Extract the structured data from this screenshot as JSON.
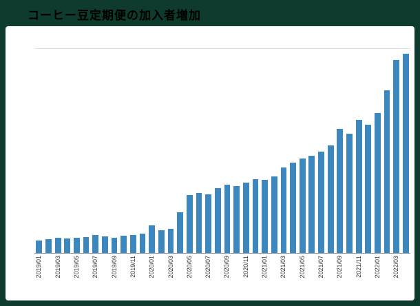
{
  "title": "コーヒー豆定期便の加入者増加",
  "colors": {
    "background": "#0e3b2e",
    "panel": "#ffffff",
    "bar": "#3c87be",
    "axis_line": "#8a8a8a",
    "gridline": "#e0e0e0",
    "tick_text": "#333333",
    "title_text": "#000000"
  },
  "chart_data": {
    "type": "bar",
    "title": "コーヒー豆定期便の加入者増加",
    "xlabel": "",
    "ylabel": "",
    "ylim": [
      0,
      300
    ],
    "grid": "single top gridline, x baseline",
    "legend_position": "none",
    "x_tick_every": 2,
    "x_tick_rotation": 90,
    "categories": [
      "2019/01",
      "2019/02",
      "2019/03",
      "2019/04",
      "2019/05",
      "2019/06",
      "2019/07",
      "2019/08",
      "2019/09",
      "2019/10",
      "2019/11",
      "2019/12",
      "2020/01",
      "2020/02",
      "2020/03",
      "2020/04",
      "2020/05",
      "2020/06",
      "2020/07",
      "2020/08",
      "2020/09",
      "2020/10",
      "2020/11",
      "2020/12",
      "2021/01",
      "2021/02",
      "2021/03",
      "2021/04",
      "2021/05",
      "2021/06",
      "2021/07",
      "2021/08",
      "2021/09",
      "2021/10",
      "2021/11",
      "2021/12",
      "2022/01",
      "2022/02",
      "2022/03",
      "2022/04"
    ],
    "values": [
      18,
      20,
      22,
      21,
      22,
      23,
      26,
      24,
      22,
      25,
      26,
      28,
      40,
      33,
      35,
      60,
      85,
      88,
      86,
      95,
      100,
      98,
      103,
      108,
      107,
      112,
      125,
      132,
      138,
      142,
      148,
      158,
      182,
      175,
      195,
      188,
      205,
      238,
      283,
      292
    ],
    "visible_x_tick_labels": [
      "2019/01",
      "2019/03",
      "2019/05",
      "2019/07",
      "2019/09",
      "2019/11",
      "2020/01",
      "2020/03",
      "2020/05",
      "2020/07",
      "2020/09",
      "2020/11",
      "2021/01",
      "2021/03",
      "2021/05",
      "2021/07",
      "2021/09",
      "2021/11",
      "2022/01",
      "2022/03"
    ]
  }
}
